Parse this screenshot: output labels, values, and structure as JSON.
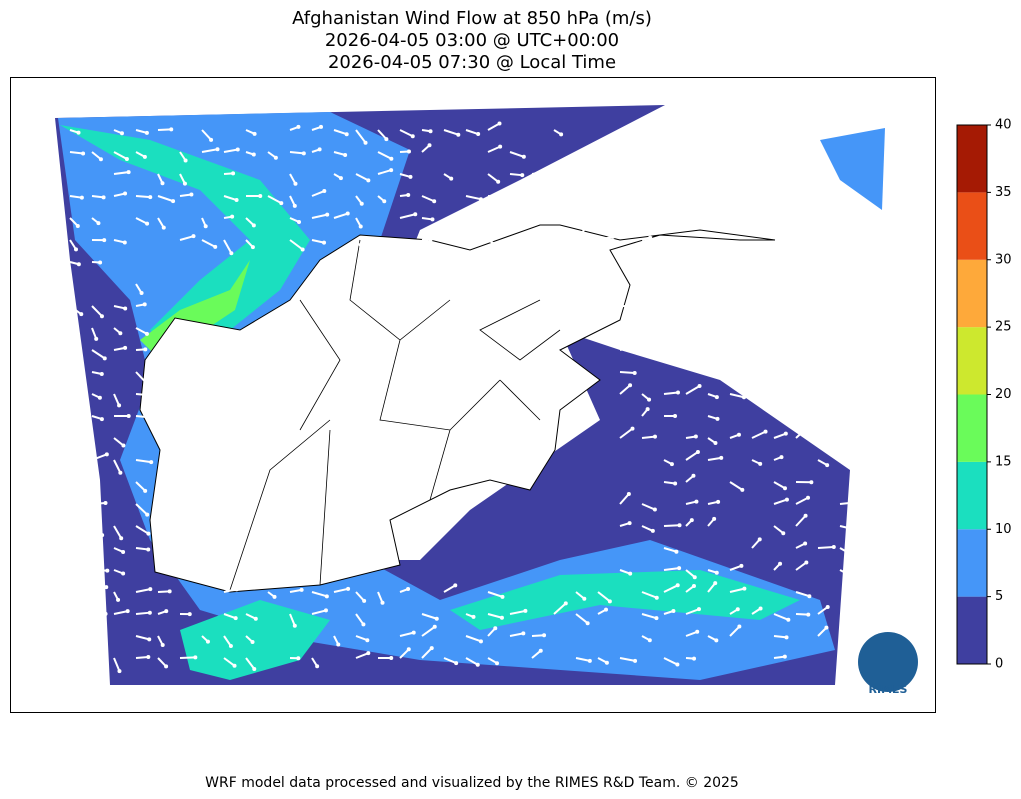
{
  "title": [
    "Afghanistan Wind Flow at 850 hPa (m/s)",
    "2026-04-05 03:00 @ UTC+00:00",
    "2026-04-05 07:30 @ Local Time"
  ],
  "colorbar": {
    "lim": [
      0,
      40
    ],
    "ticks": [
      0,
      5,
      10,
      15,
      20,
      25,
      30,
      35,
      40
    ],
    "colors": [
      "#3f3fa0",
      "#4596f8",
      "#1bdfbf",
      "#6afb5a",
      "#cde82e",
      "#fea93a",
      "#ea4f17",
      "#a51a04"
    ]
  },
  "logo": "RIMES",
  "footer": "WRF model data processed and visualized by the RIMES R&D Team. © 2025"
}
